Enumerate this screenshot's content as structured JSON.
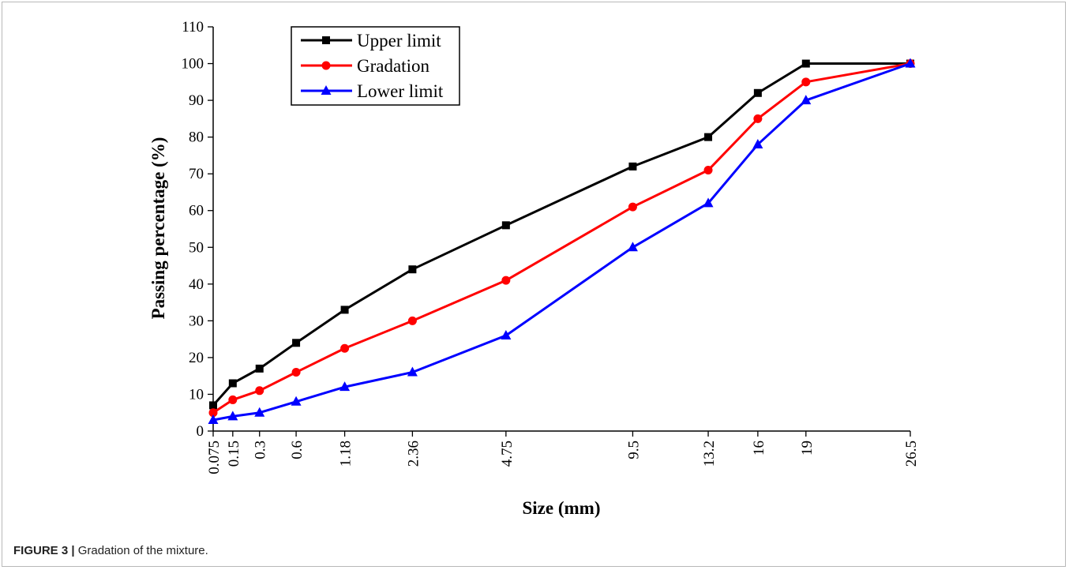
{
  "chart_data": {
    "type": "line",
    "xlabel": "Size (mm)",
    "ylabel": "Passing percentage (%)",
    "ylim": [
      0,
      110
    ],
    "yticks": [
      0,
      10,
      20,
      30,
      40,
      50,
      60,
      70,
      80,
      90,
      100,
      110
    ],
    "x_scale": "power-0.45 (gradation chart)",
    "x": [
      "0.075",
      "0.15",
      "0.3",
      "0.6",
      "1.18",
      "2.36",
      "4.75",
      "9.5",
      "13.2",
      "16",
      "19",
      "26.5"
    ],
    "x_values": [
      0.075,
      0.15,
      0.3,
      0.6,
      1.18,
      2.36,
      4.75,
      9.5,
      13.2,
      16,
      19,
      26.5
    ],
    "legend_position": "top-left",
    "series": [
      {
        "name": "Upper limit",
        "color": "#000000",
        "marker": "square",
        "values": [
          7,
          13,
          17,
          24,
          33,
          44,
          56,
          72,
          80,
          92,
          100,
          100
        ]
      },
      {
        "name": "Gradation",
        "color": "#ff0000",
        "marker": "circle",
        "values": [
          5,
          8.5,
          11,
          16,
          22.5,
          30,
          41,
          61,
          71,
          85,
          95,
          100
        ]
      },
      {
        "name": "Lower limit",
        "color": "#0000ff",
        "marker": "triangle",
        "values": [
          3,
          4,
          5,
          8,
          12,
          16,
          26,
          50,
          62,
          78,
          90,
          100
        ]
      }
    ]
  },
  "caption": {
    "label": "FIGURE 3 |",
    "text": " Gradation of the mixture."
  }
}
